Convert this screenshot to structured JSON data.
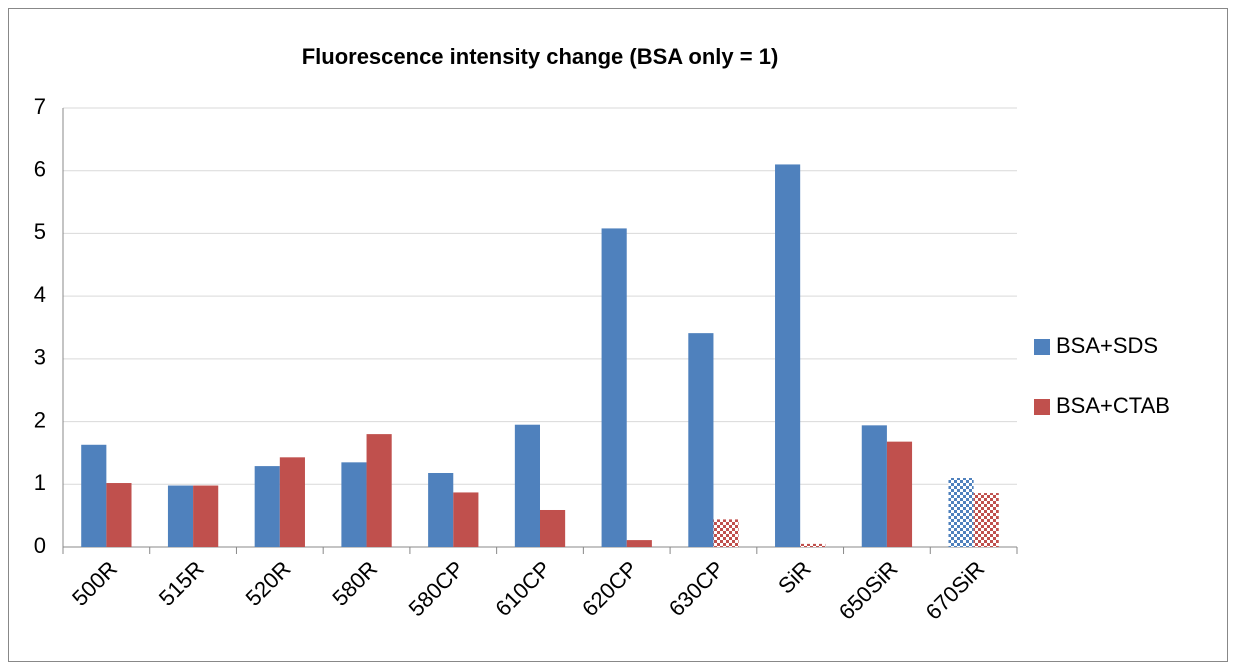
{
  "chart_data": {
    "type": "bar",
    "title": "Fluorescence intensity change (BSA only = 1)",
    "categories": [
      "500R",
      "515R",
      "520R",
      "580R",
      "580CP",
      "610CP",
      "620CP",
      "630CP",
      "SiR",
      "650SiR",
      "670SiR"
    ],
    "series": [
      {
        "name": "BSA+SDS",
        "color": "#4f81bd",
        "values": [
          1.63,
          0.98,
          1.29,
          1.35,
          1.18,
          1.95,
          5.08,
          3.41,
          6.1,
          1.94,
          1.1
        ],
        "pattern": [
          false,
          false,
          false,
          false,
          false,
          false,
          false,
          false,
          false,
          false,
          true
        ]
      },
      {
        "name": "BSA+CTAB",
        "color": "#c0504d",
        "values": [
          1.02,
          0.98,
          1.43,
          1.8,
          0.87,
          0.59,
          0.11,
          0.44,
          0.05,
          1.68,
          0.86
        ],
        "pattern": [
          false,
          false,
          false,
          false,
          false,
          false,
          false,
          true,
          true,
          false,
          true
        ]
      }
    ],
    "ylim": [
      0,
      7
    ],
    "yticks": [
      0,
      1,
      2,
      3,
      4,
      5,
      6,
      7
    ],
    "grid": true,
    "legend": "right"
  }
}
